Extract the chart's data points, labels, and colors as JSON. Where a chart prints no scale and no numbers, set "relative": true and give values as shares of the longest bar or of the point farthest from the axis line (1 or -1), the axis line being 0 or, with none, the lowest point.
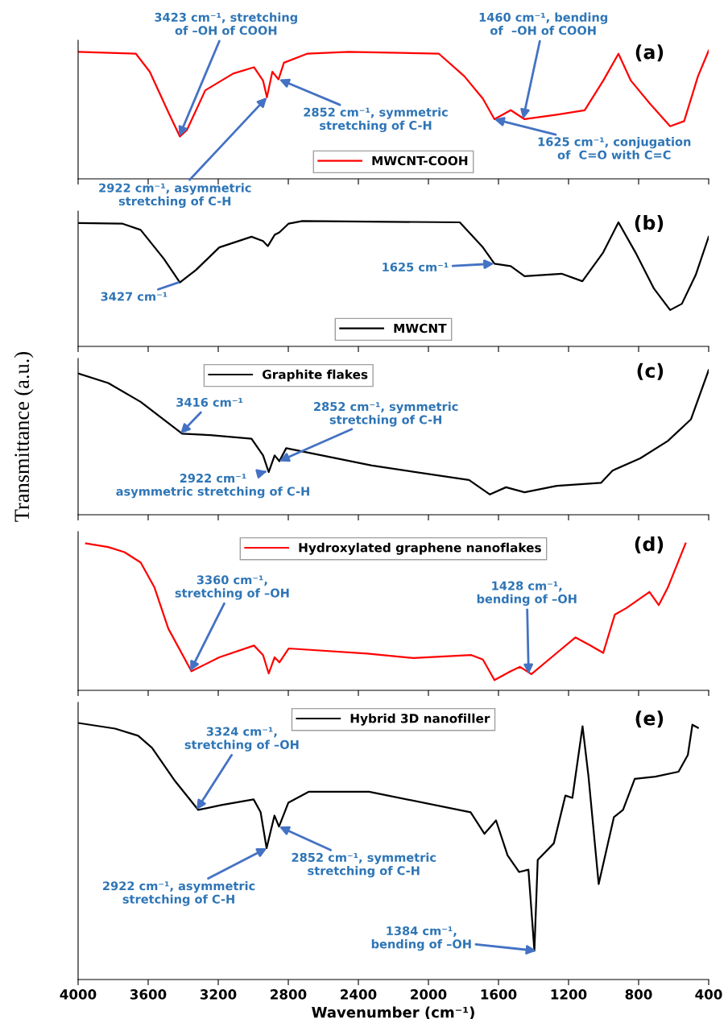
{
  "chart_data": [
    {
      "type": "line",
      "title": "(a)",
      "relative": true,
      "xlim": [
        4000,
        400
      ],
      "xticks": [
        4000,
        3600,
        3200,
        2800,
        2400,
        2000,
        1600,
        1200,
        800,
        400
      ],
      "tick_labels": false,
      "legend": "bottom",
      "grid": false,
      "marker": "none",
      "line_style": "solid",
      "series": [
        {
          "name": "MWCNT-COOH",
          "color": "#ff0000",
          "x": [
            4000,
            3670,
            3591,
            3485,
            3419,
            3379,
            3274,
            3115,
            2996,
            2944,
            2922,
            2891,
            2856,
            2825,
            2693,
            2455,
            1940,
            1795,
            1689,
            1623,
            1530,
            1451,
            1267,
            1108,
            1002,
            915,
            844,
            738,
            620,
            540,
            461,
            400
          ],
          "values": [
            0.99,
            0.975,
            0.835,
            0.52,
            0.33,
            0.38,
            0.69,
            0.82,
            0.87,
            0.765,
            0.635,
            0.835,
            0.775,
            0.905,
            0.975,
            0.99,
            0.975,
            0.8,
            0.625,
            0.465,
            0.535,
            0.465,
            0.5,
            0.535,
            0.765,
            0.975,
            0.765,
            0.59,
            0.41,
            0.45,
            0.8,
            1.0
          ]
        }
      ],
      "annotations": [
        {
          "text": "3423 cm⁻¹, stretching\nof –OH of COOH",
          "x": 3423,
          "y": 0.33
        },
        {
          "text": "2922 cm⁻¹, asymmetric\nstretching of C-H",
          "x": 2922,
          "y": 0.635
        },
        {
          "text": "2852 cm⁻¹, symmetric\nstretching of C-H",
          "x": 2852,
          "y": 0.775
        },
        {
          "text": "1460 cm⁻¹, bending\nof  –OH of COOH",
          "x": 1460,
          "y": 0.465
        },
        {
          "text": "1625 cm⁻¹, conjugation\nof  C=O with C=C",
          "x": 1625,
          "y": 0.465
        }
      ]
    },
    {
      "type": "line",
      "title": "(b)",
      "relative": true,
      "xlim": [
        4000,
        400
      ],
      "xticks": [
        4000,
        3600,
        3200,
        2800,
        2400,
        2000,
        1600,
        1200,
        800,
        400
      ],
      "tick_labels": false,
      "legend": "bottom",
      "grid": false,
      "marker": "none",
      "line_style": "solid",
      "series": [
        {
          "name": "MWCNT",
          "color": "#000000",
          "x": [
            4000,
            3749,
            3643,
            3511,
            3419,
            3327,
            3194,
            3010,
            2944,
            2917,
            2878,
            2851,
            2798,
            2719,
            1821,
            1689,
            1623,
            1530,
            1451,
            1240,
            1121,
            1002,
            915,
            818,
            712,
            620,
            553,
            474,
            400
          ],
          "values": [
            0.985,
            0.98,
            0.93,
            0.7,
            0.51,
            0.61,
            0.79,
            0.875,
            0.84,
            0.8,
            0.89,
            0.91,
            0.98,
            1.0,
            0.99,
            0.79,
            0.66,
            0.64,
            0.56,
            0.58,
            0.52,
            0.75,
            0.99,
            0.75,
            0.46,
            0.29,
            0.34,
            0.57,
            0.875
          ]
        }
      ],
      "annotations": [
        {
          "text": "3427 cm⁻¹",
          "x": 3427,
          "y": 0.51
        },
        {
          "text": "1625 cm⁻¹",
          "x": 1625,
          "y": 0.66
        }
      ]
    },
    {
      "type": "line",
      "title": "(c)",
      "relative": true,
      "ylabel": "Transmittance (a.u.)",
      "xlim": [
        4000,
        400
      ],
      "xticks": [
        4000,
        3600,
        3200,
        2800,
        2400,
        2000,
        1600,
        1200,
        800,
        400
      ],
      "tick_labels": false,
      "legend": "top left",
      "grid": false,
      "marker": "none",
      "line_style": "solid",
      "series": [
        {
          "name": "Graphite flakes",
          "color": "#000000",
          "x": [
            4000,
            3828,
            3643,
            3406,
            3247,
            3010,
            2944,
            2912,
            2878,
            2851,
            2812,
            2323,
            1768,
            1649,
            1557,
            1451,
            1267,
            1015,
            949,
            791,
            633,
            501,
            400
          ],
          "values": [
            0.977,
            0.91,
            0.78,
            0.56,
            0.55,
            0.525,
            0.41,
            0.295,
            0.41,
            0.37,
            0.46,
            0.34,
            0.24,
            0.14,
            0.19,
            0.155,
            0.2,
            0.22,
            0.305,
            0.39,
            0.51,
            0.66,
            1.0
          ]
        }
      ],
      "annotations": [
        {
          "text": "3416 cm⁻¹",
          "x": 3416,
          "y": 0.56
        },
        {
          "text": "2852 cm⁻¹, symmetric\nstretching of C-H",
          "x": 2852,
          "y": 0.37
        },
        {
          "text": "2922 cm⁻¹\nasymmetric stretching of C-H",
          "x": 2922,
          "y": 0.3
        }
      ]
    },
    {
      "type": "line",
      "title": "(d)",
      "relative": true,
      "xlim": [
        4000,
        400
      ],
      "xticks": [
        4000,
        3600,
        3200,
        2800,
        2400,
        2000,
        1600,
        1200,
        800,
        400
      ],
      "tick_labels": false,
      "legend": "top",
      "grid": false,
      "marker": "none",
      "line_style": "solid",
      "series": [
        {
          "name": "Hydroxylated graphene nanoflakes",
          "color": "#ff0000",
          "x": [
            3955,
            3828,
            3735,
            3643,
            3564,
            3485,
            3353,
            3194,
            2996,
            2944,
            2912,
            2878,
            2851,
            2798,
            2349,
            2085,
            1755,
            1689,
            1623,
            1530,
            1477,
            1412,
            1267,
            1161,
            1082,
            1002,
            936,
            870,
            738,
            685,
            633,
            532
          ],
          "values": [
            1.0,
            0.975,
            0.94,
            0.87,
            0.7,
            0.42,
            0.13,
            0.225,
            0.305,
            0.24,
            0.115,
            0.225,
            0.19,
            0.285,
            0.25,
            0.22,
            0.24,
            0.21,
            0.07,
            0.13,
            0.16,
            0.11,
            0.255,
            0.36,
            0.31,
            0.255,
            0.515,
            0.56,
            0.67,
            0.58,
            0.7,
            1.0
          ]
        }
      ],
      "annotations": [
        {
          "text": "3360 cm⁻¹,\nstretching of –OH",
          "x": 3360,
          "y": 0.13
        },
        {
          "text": "1428 cm⁻¹,\nbending of –OH",
          "x": 1428,
          "y": 0.11
        }
      ]
    },
    {
      "type": "line",
      "title": "(e)",
      "relative": true,
      "xlabel": "Wavenumber (cm⁻¹)",
      "xlim": [
        4000,
        400
      ],
      "xticks": [
        4000,
        3600,
        3200,
        2800,
        2400,
        2000,
        1600,
        1200,
        800,
        400
      ],
      "tick_labels": "x",
      "legend": "top",
      "grid": false,
      "marker": "none",
      "line_style": "solid",
      "series": [
        {
          "name": "Hybrid 3D nanofiller",
          "color": "#000000",
          "x": [
            4000,
            3789,
            3657,
            3578,
            3446,
            3314,
            3182,
            2998,
            2958,
            2924,
            2879,
            2853,
            2800,
            2682,
            2339,
            1759,
            1680,
            1614,
            1548,
            1482,
            1429,
            1395,
            1376,
            1284,
            1218,
            1178,
            1120,
            1086,
            1028,
            941,
            889,
            822,
            704,
            572,
            519,
            493,
            461
          ],
          "values": [
            1.0,
            0.978,
            0.95,
            0.903,
            0.773,
            0.661,
            0.68,
            0.702,
            0.652,
            0.512,
            0.639,
            0.596,
            0.689,
            0.732,
            0.732,
            0.652,
            0.568,
            0.62,
            0.484,
            0.419,
            0.428,
            0.112,
            0.466,
            0.531,
            0.717,
            0.708,
            0.987,
            0.791,
            0.372,
            0.633,
            0.661,
            0.782,
            0.791,
            0.81,
            0.875,
            0.993,
            0.981
          ]
        }
      ],
      "annotations": [
        {
          "text": "3324 cm⁻¹,\nstretching of –OH",
          "x": 3324,
          "y": 0.661
        },
        {
          "text": "2922 cm⁻¹, asymmetric\nstretching of C-H",
          "x": 2922,
          "y": 0.512
        },
        {
          "text": "2852 cm⁻¹, symmetric\nstretching of C-H",
          "x": 2852,
          "y": 0.596
        },
        {
          "text": "1384 cm⁻¹,\nbending of –OH",
          "x": 1384,
          "y": 0.112
        }
      ]
    }
  ]
}
